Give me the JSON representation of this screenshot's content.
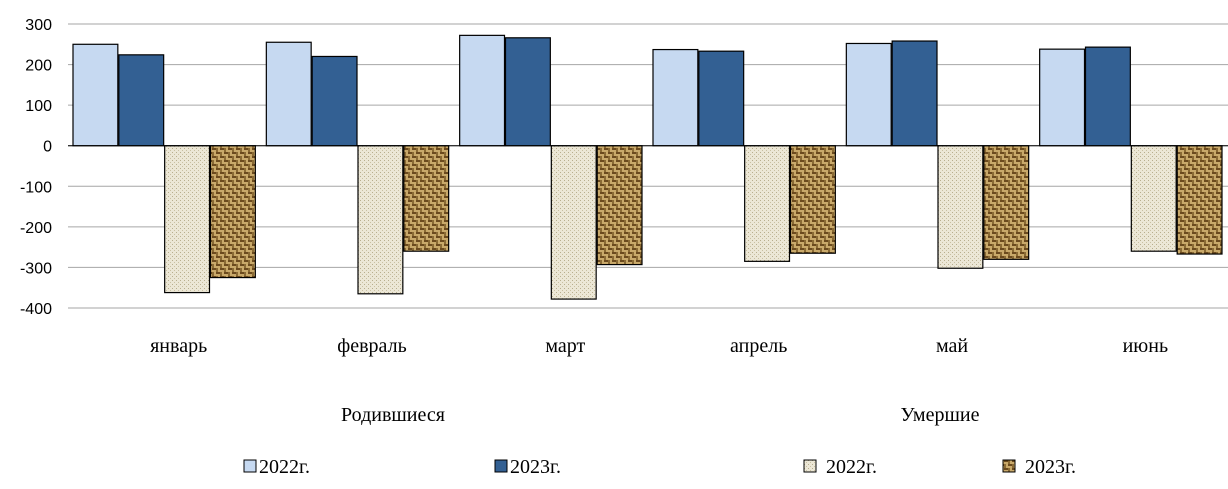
{
  "chart_data": {
    "type": "bar",
    "categories": [
      "январь",
      "февраль",
      "март",
      "апрель",
      "май",
      "июнь"
    ],
    "group_labels": [
      "Родившиеся",
      "Умершие"
    ],
    "ylim": [
      -400,
      300
    ],
    "yticks": [
      300,
      200,
      100,
      0,
      -100,
      -200,
      -300,
      -400
    ],
    "grid": true,
    "legend_position": "bottom",
    "series": [
      {
        "name": "2022г.",
        "group": "Родившиеся",
        "color": "#c6d9f1",
        "pattern": "solid",
        "values": [
          250,
          255,
          272,
          237,
          252,
          238
        ]
      },
      {
        "name": "2023г.",
        "group": "Родившиеся",
        "color": "#336093",
        "pattern": "solid",
        "values": [
          224,
          220,
          266,
          233,
          258,
          243
        ]
      },
      {
        "name": "2022г.",
        "group": "Умершие",
        "color": "#ddd9c3",
        "pattern": "dots",
        "values": [
          -362,
          -365,
          -378,
          -285,
          -302,
          -260
        ]
      },
      {
        "name": "2023г.",
        "group": "Умершие",
        "color": "#b08e51",
        "pattern": "weave",
        "values": [
          -325,
          -260,
          -293,
          -265,
          -280,
          -267
        ]
      }
    ]
  }
}
